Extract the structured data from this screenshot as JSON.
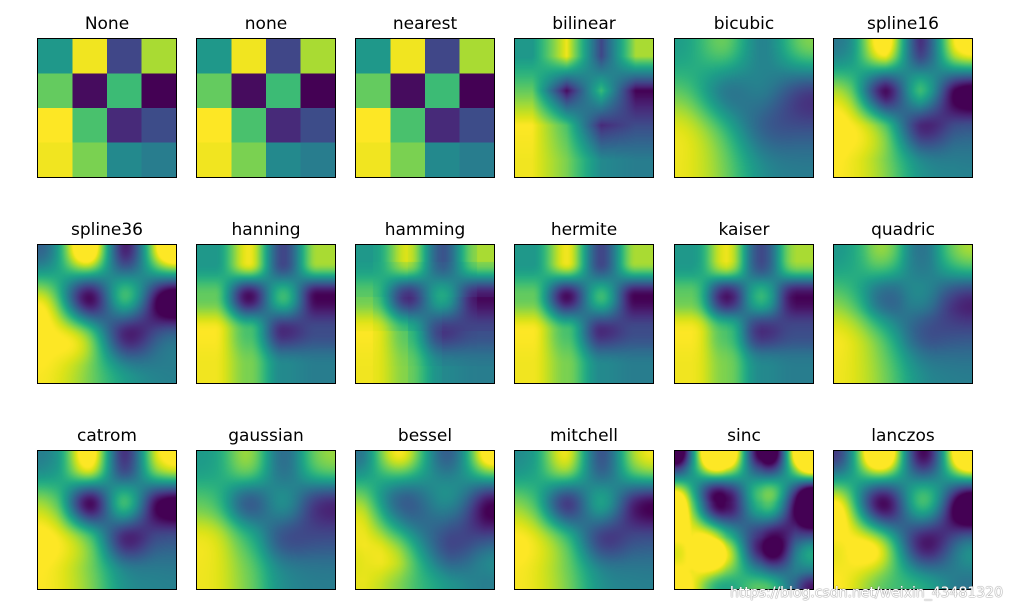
{
  "chart_data": {
    "type": "heatmap",
    "grid": [
      [
        0.53,
        0.98,
        0.21,
        0.87
      ],
      [
        0.76,
        0.03,
        0.68,
        0.0
      ],
      [
        1.0,
        0.71,
        0.12,
        0.23
      ],
      [
        0.98,
        0.8,
        0.47,
        0.42
      ]
    ],
    "subplots": [
      {
        "title": "None"
      },
      {
        "title": "none"
      },
      {
        "title": "nearest"
      },
      {
        "title": "bilinear"
      },
      {
        "title": "bicubic"
      },
      {
        "title": "spline16"
      },
      {
        "title": "spline36"
      },
      {
        "title": "hanning"
      },
      {
        "title": "hamming"
      },
      {
        "title": "hermite"
      },
      {
        "title": "kaiser"
      },
      {
        "title": "quadric"
      },
      {
        "title": "catrom"
      },
      {
        "title": "gaussian"
      },
      {
        "title": "bessel"
      },
      {
        "title": "mitchell"
      },
      {
        "title": "sinc"
      },
      {
        "title": "lanczos"
      }
    ]
  },
  "watermark": "https://blog.csdn.net/weixin_43481320"
}
